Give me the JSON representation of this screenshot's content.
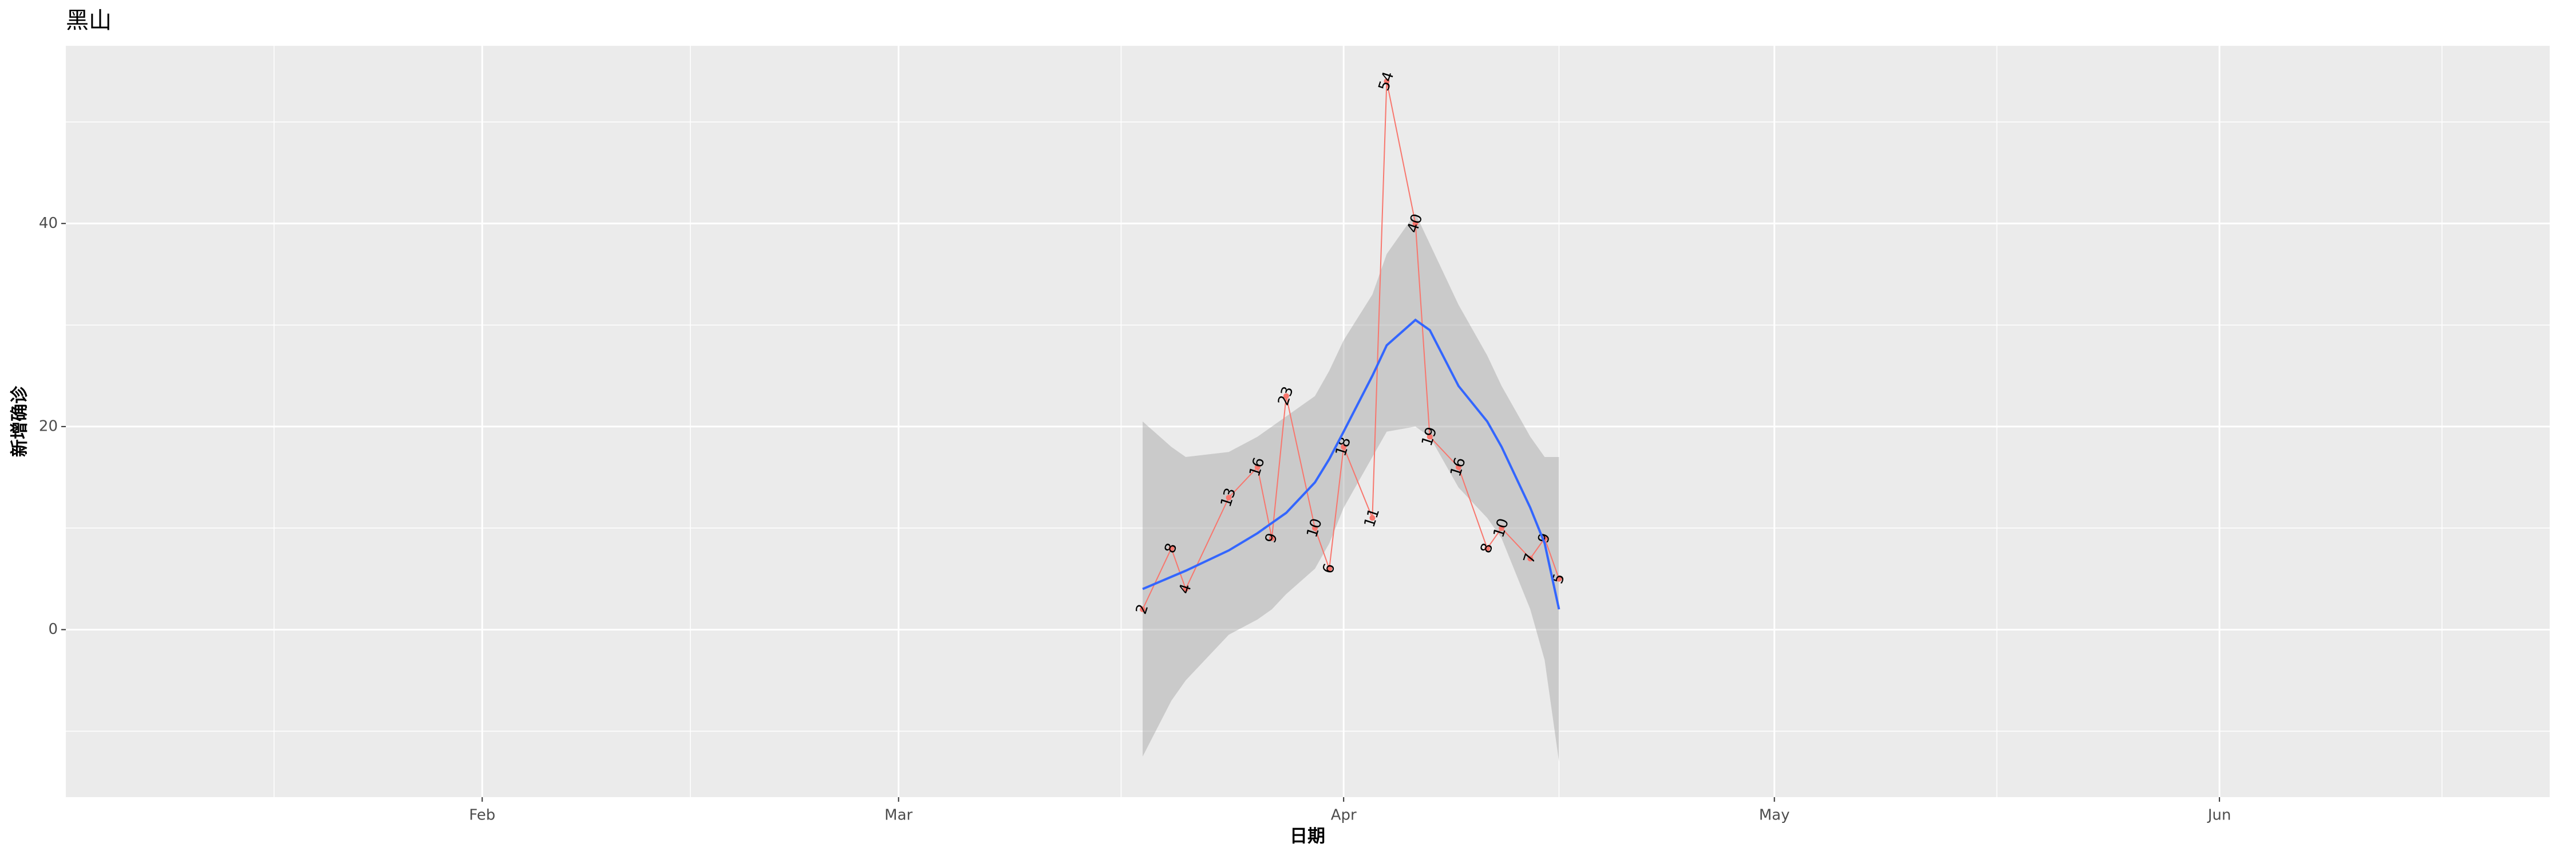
{
  "chart_data": {
    "type": "line",
    "title": "黑山",
    "xlabel": "日期",
    "ylabel": "新增确诊",
    "x": [
      "03-18",
      "03-20",
      "03-21",
      "03-24",
      "03-26",
      "03-27",
      "03-28",
      "03-30",
      "03-31",
      "04-01",
      "04-03",
      "04-04",
      "04-06",
      "04-07",
      "04-09",
      "04-11",
      "04-12",
      "04-14",
      "04-15",
      "04-16"
    ],
    "values": [
      2,
      8,
      4,
      13,
      16,
      9,
      23,
      10,
      6,
      18,
      11,
      54,
      40,
      19,
      16,
      8,
      10,
      7,
      9,
      5
    ],
    "color": "#f8766d",
    "smooth": {
      "color": "#3366ff",
      "band_color": "#999999",
      "values": [
        4.0,
        5.2,
        5.8,
        7.8,
        9.5,
        10.5,
        11.5,
        14.5,
        16.8,
        19.5,
        25,
        28,
        30.5,
        29.5,
        24,
        20.5,
        18,
        12,
        8.5,
        2
      ],
      "upper": [
        20.5,
        18,
        17,
        17.5,
        19,
        20,
        21,
        23,
        25.5,
        28.5,
        33,
        37,
        41,
        38,
        32,
        27,
        24,
        19,
        17,
        17
      ],
      "lower": [
        -12.5,
        -7,
        -5,
        -0.5,
        1,
        2,
        3.5,
        6,
        8.5,
        12,
        17,
        19.5,
        20,
        19,
        14,
        11,
        9,
        2,
        -3,
        -13
      ]
    },
    "xlim": [
      "01-03",
      "06-24"
    ],
    "xticks": [
      {
        "value": "02-01",
        "label": "Feb"
      },
      {
        "value": "03-01",
        "label": "Mar"
      },
      {
        "value": "04-01",
        "label": "Apr"
      },
      {
        "value": "05-01",
        "label": "May"
      },
      {
        "value": "06-01",
        "label": "Jun"
      }
    ],
    "ylim": [
      -16.5,
      57.5
    ],
    "yticks": [
      0,
      20,
      40
    ],
    "grid": true
  }
}
